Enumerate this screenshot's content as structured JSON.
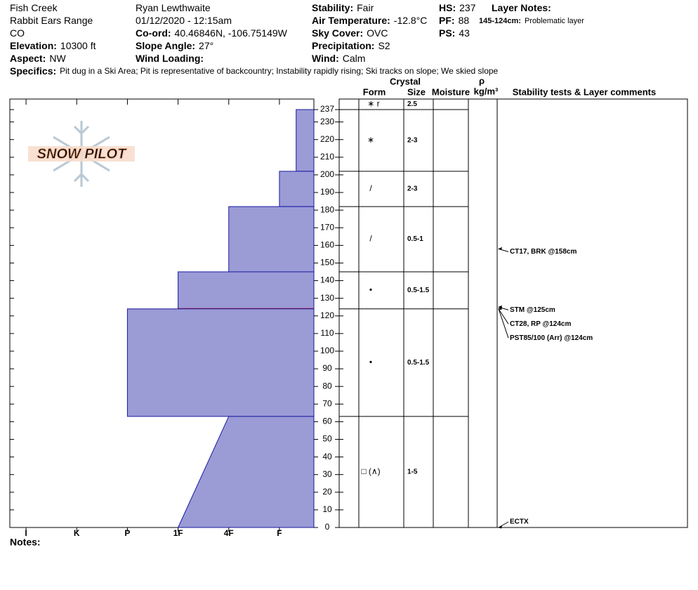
{
  "header": {
    "columns": [
      [
        {
          "value": "Fish Creek"
        },
        {
          "value": "Rabbit Ears Range"
        },
        {
          "value": "CO"
        },
        {
          "label": "Elevation:",
          "value": "10300 ft"
        },
        {
          "label": "Aspect:",
          "value": "NW"
        }
      ],
      [
        {
          "value": "Ryan Lewthwaite"
        },
        {
          "value": "01/12/2020 - 12:15am"
        },
        {
          "label": "Co-ord:",
          "value": "40.46846N, -106.75149W"
        },
        {
          "label": "Slope Angle:",
          "value": "27°"
        },
        {
          "label": "Wind Loading:"
        }
      ],
      [
        {
          "label": "Stability:",
          "value": "Fair"
        },
        {
          "label": "Air Temperature:",
          "value": "-12.8°C"
        },
        {
          "label": "Sky Cover:",
          "value": "OVC"
        },
        {
          "label": "Precipitation:",
          "value": "S2"
        },
        {
          "label": "Wind:",
          "value": "Calm"
        }
      ],
      [
        {
          "label": "HS:",
          "value": "237"
        },
        {
          "label": "PF:",
          "value": "88"
        },
        {
          "label": "PS:",
          "value": "43"
        }
      ],
      [
        {
          "label": "Layer Notes:"
        },
        {
          "label": "145-124cm:",
          "value": "Problematic layer"
        }
      ]
    ],
    "specifics": {
      "label": "Specifics:",
      "value": "Pit dug in a Ski Area;  Pit is representative of backcountry;  Instability rapidly rising;  Ski tracks on slope;  We skied slope"
    },
    "logo": "SNOW PILOT"
  },
  "chart_data": {
    "type": "snow-profile",
    "color": "#9b9bd6",
    "ylim": [
      0,
      243
    ],
    "yticks": [
      0,
      10,
      20,
      30,
      40,
      50,
      60,
      70,
      80,
      90,
      100,
      110,
      120,
      130,
      140,
      150,
      160,
      170,
      180,
      190,
      200,
      210,
      220,
      230,
      237
    ],
    "xlim": [
      6.32,
      0.32
    ],
    "xticks": [
      {
        "value": 6,
        "label": "I"
      },
      {
        "value": 5,
        "label": "K"
      },
      {
        "value": 4,
        "label": "P"
      },
      {
        "value": 3,
        "label": "1F"
      },
      {
        "value": 2,
        "label": "4F"
      },
      {
        "value": 1,
        "label": "F"
      }
    ],
    "table_headers": {
      "crystal": "Crystal",
      "form": "Form",
      "size": "Size",
      "moisture": "Moisture",
      "rho": "ρ",
      "density": "kg/m³",
      "comments": "Stability tests & Layer comments"
    },
    "surface": {
      "form": "∗ r",
      "size": "2.5"
    },
    "layers": [
      {
        "top": 237,
        "bottom": 202,
        "hardness_top": 0.67,
        "hardness_bottom": 0.67,
        "form": "∗",
        "size": "2-3"
      },
      {
        "top": 202,
        "bottom": 182,
        "hardness_top": 1,
        "hardness_bottom": 1,
        "form": "/",
        "size": "2-3"
      },
      {
        "top": 182,
        "bottom": 145,
        "hardness_top": 2,
        "hardness_bottom": 2,
        "form": "/",
        "size": "0.5-1"
      },
      {
        "top": 145,
        "bottom": 124,
        "hardness_top": 3,
        "hardness_bottom": 3,
        "form": "•",
        "size": "0.5-1.5",
        "problematic": true
      },
      {
        "top": 124,
        "bottom": 63,
        "hardness_top": 4,
        "hardness_bottom": 4,
        "form": "•",
        "size": "0.5-1.5"
      },
      {
        "top": 63,
        "bottom": 0,
        "hardness_top": 2,
        "hardness_bottom": 3,
        "form": "□ (∧)",
        "size": "1-5"
      }
    ],
    "tests": [
      {
        "text": "CT17, BRK @158cm",
        "height": 158
      },
      {
        "text": "STM @125cm",
        "height": 125
      },
      {
        "text": "CT28, RP @124cm",
        "height": 124
      },
      {
        "text": "PST85/100 (Arr) @124cm",
        "height": 124
      },
      {
        "text": "ECTX",
        "height": 0
      }
    ],
    "notes_label": "Notes:"
  }
}
